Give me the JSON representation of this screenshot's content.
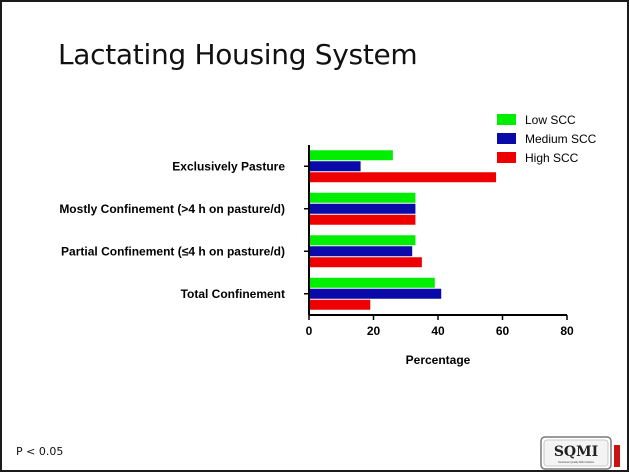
{
  "slide": {
    "title": "Lactating Housing System",
    "footnote": "P < 0.05"
  },
  "logo": {
    "text": "SQMI",
    "subtext": "Southeast Quality Milk Initiative"
  },
  "chart_data": {
    "type": "bar",
    "orientation": "horizontal",
    "categories": [
      "Exclusively Pasture",
      "Mostly Confinement (>4 h on pasture/d)",
      "Partial Confinement (≤4 h on pasture/d)",
      "Total Confinement"
    ],
    "series": [
      {
        "name": "Low SCC",
        "color": "#00ee00",
        "values": [
          26,
          33,
          33,
          39
        ]
      },
      {
        "name": "Medium SCC",
        "color": "#0a0aa8",
        "values": [
          16,
          33,
          32,
          41
        ]
      },
      {
        "name": "High SCC",
        "color": "#ee0000",
        "values": [
          58,
          33,
          35,
          19
        ]
      }
    ],
    "xlabel": "Percentage",
    "ylabel": "",
    "xlim": [
      0,
      80
    ],
    "xticks": [
      0,
      20,
      40,
      60,
      80
    ],
    "grid": false,
    "legend": "top-right"
  }
}
